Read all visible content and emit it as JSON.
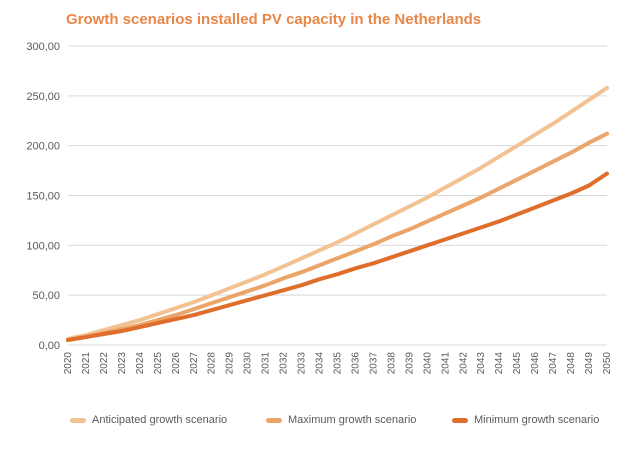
{
  "chart_data": {
    "type": "line",
    "title": "Growth scenarios installed PV capacity in the Netherlands",
    "xlabel": "",
    "ylabel": "",
    "x": [
      "2020",
      "2021",
      "2022",
      "2023",
      "2024",
      "2025",
      "2026",
      "2027",
      "2028",
      "2029",
      "2030",
      "2031",
      "2032",
      "2033",
      "2034",
      "2035",
      "2036",
      "2037",
      "2038",
      "2039",
      "2040",
      "2041",
      "2042",
      "2043",
      "2044",
      "2045",
      "2046",
      "2047",
      "2048",
      "2049",
      "2050"
    ],
    "ylim": [
      0,
      300
    ],
    "yticks": [
      "0,00",
      "50,00",
      "100,00",
      "150,00",
      "200,00",
      "250,00",
      "300,00"
    ],
    "ytick_values": [
      0,
      50,
      100,
      150,
      200,
      250,
      300
    ],
    "grid": "horizontal",
    "legend": "bottom",
    "series": [
      {
        "name": "Anticipated growth scenario",
        "color": "#f2c293",
        "values": [
          6,
          10,
          15,
          20,
          25,
          31,
          37,
          43,
          50,
          57,
          64,
          71,
          79,
          87,
          95,
          103,
          112,
          121,
          130,
          139,
          148,
          158,
          168,
          178,
          189,
          200,
          211,
          222,
          234,
          246,
          258
        ]
      },
      {
        "name": "Maximum growth scenario",
        "color": "#eba568",
        "values": [
          5,
          8,
          12,
          16,
          20,
          25,
          30,
          36,
          42,
          48,
          54,
          60,
          67,
          73,
          80,
          87,
          94,
          101,
          109,
          116,
          124,
          132,
          140,
          148,
          157,
          166,
          175,
          184,
          193,
          203,
          212
        ]
      },
      {
        "name": "Minimum growth scenario",
        "color": "#df6e2c",
        "values": [
          5,
          8,
          11,
          14,
          18,
          22,
          26,
          30,
          35,
          40,
          45,
          50,
          55,
          60,
          66,
          71,
          77,
          82,
          88,
          94,
          100,
          106,
          112,
          118,
          124,
          131,
          138,
          145,
          152,
          160,
          172
        ]
      }
    ]
  }
}
